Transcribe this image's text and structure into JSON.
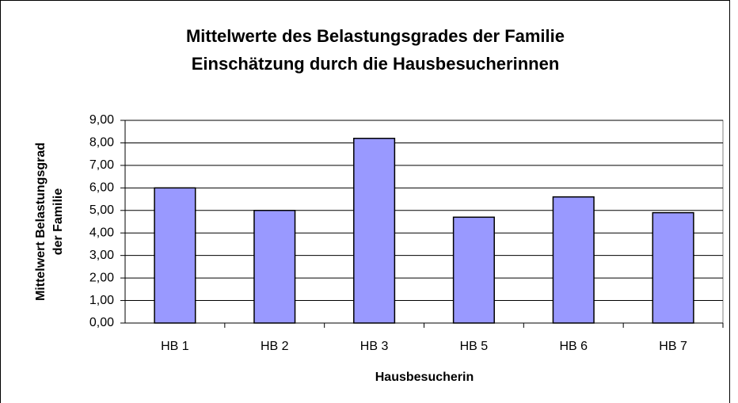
{
  "chart_data": {
    "type": "bar",
    "title": "Mittelwerte des Belastungsgrades der Familie",
    "subtitle": "Einschätzung durch die Hausbesucherinnen",
    "ylabel": [
      "Mittelwert Belastungsgrad",
      "der Familie"
    ],
    "xlabel": "Hausbesucherin",
    "categories": [
      "HB 1",
      "HB 2",
      "HB 3",
      "HB 5",
      "HB 6",
      "HB 7"
    ],
    "values": [
      6.0,
      5.0,
      8.2,
      4.7,
      5.6,
      4.9
    ],
    "color": "#9999ff",
    "ylim": [
      0,
      9
    ],
    "yticks": [
      {
        "value": 0,
        "label": "0,00"
      },
      {
        "value": 1,
        "label": "1,00"
      },
      {
        "value": 2,
        "label": "2,00"
      },
      {
        "value": 3,
        "label": "3,00"
      },
      {
        "value": 4,
        "label": "4,00"
      },
      {
        "value": 5,
        "label": "5,00"
      },
      {
        "value": 6,
        "label": "6,00"
      },
      {
        "value": 7,
        "label": "7,00"
      },
      {
        "value": 8,
        "label": "8,00"
      },
      {
        "value": 9,
        "label": "9,00"
      }
    ],
    "grid": true
  }
}
